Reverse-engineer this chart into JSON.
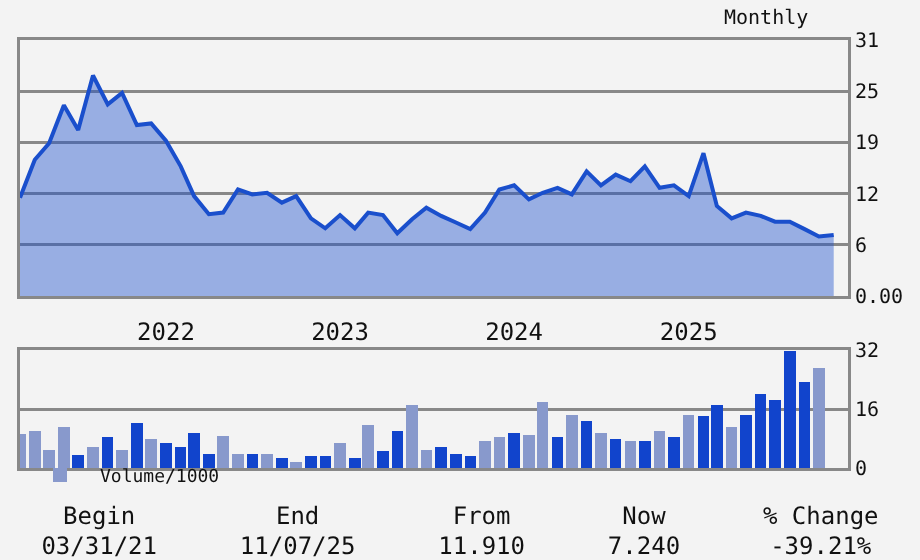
{
  "chart_data": [
    {
      "type": "area",
      "subtitle": "Monthly",
      "x": [
        "2021-03",
        "2021-04",
        "2021-05",
        "2021-06",
        "2021-07",
        "2021-08",
        "2021-09",
        "2021-10",
        "2021-11",
        "2021-12",
        "2022-01",
        "2022-02",
        "2022-03",
        "2022-04",
        "2022-05",
        "2022-06",
        "2022-07",
        "2022-08",
        "2022-09",
        "2022-10",
        "2022-11",
        "2022-12",
        "2023-01",
        "2023-02",
        "2023-03",
        "2023-04",
        "2023-05",
        "2023-06",
        "2023-07",
        "2023-08",
        "2023-09",
        "2023-10",
        "2023-11",
        "2023-12",
        "2024-01",
        "2024-02",
        "2024-03",
        "2024-04",
        "2024-05",
        "2024-06",
        "2024-07",
        "2024-08",
        "2024-09",
        "2024-10",
        "2024-11",
        "2024-12",
        "2025-01",
        "2025-02",
        "2025-03",
        "2025-04",
        "2025-05",
        "2025-06",
        "2025-07",
        "2025-08",
        "2025-09",
        "2025-10",
        "2025-11"
      ],
      "series": [
        {
          "color": "#1a4fcc",
          "values": [
            11.9,
            16.5,
            18.5,
            23.1,
            20.1,
            26.7,
            23.2,
            24.6,
            20.7,
            20.9,
            18.8,
            15.7,
            12.1,
            9.9,
            10.1,
            12.9,
            12.3,
            12.5,
            11.3,
            12.1,
            9.4,
            8.2,
            9.8,
            8.2,
            10.1,
            9.8,
            7.6,
            9.3,
            10.7,
            9.7,
            8.9,
            8.1,
            10.1,
            12.9,
            13.4,
            11.7,
            12.5,
            13.1,
            12.3,
            15.1,
            13.4,
            14.7,
            13.9,
            15.7,
            13.1,
            13.4,
            12.1,
            17.3,
            10.9,
            9.4,
            10.1,
            9.7,
            9.0,
            9.0,
            8.1,
            7.2,
            7.4
          ]
        }
      ],
      "xlim": [
        "2021-03-01",
        "2025-12-01"
      ],
      "xticks": [
        {
          "value": "2022-01-01",
          "label": "2022"
        },
        {
          "value": "2023-01-01",
          "label": "2023"
        },
        {
          "value": "2024-01-01",
          "label": "2024"
        },
        {
          "value": "2025-01-01",
          "label": "2025"
        }
      ],
      "ylim": [
        0,
        31
      ],
      "yticks": [
        {
          "value": 0,
          "label": "0.00"
        },
        {
          "value": 6.2,
          "label": "6"
        },
        {
          "value": 12.4,
          "label": "12"
        },
        {
          "value": 18.6,
          "label": "19"
        },
        {
          "value": 24.8,
          "label": "25"
        },
        31
      ],
      "grid": "y",
      "legend": false
    },
    {
      "type": "bar",
      "x": [
        "2021-03",
        "2021-04",
        "2021-05",
        "2021-06",
        "2021-07",
        "2021-08",
        "2021-09",
        "2021-10",
        "2021-11",
        "2021-12",
        "2022-01",
        "2022-02",
        "2022-03",
        "2022-04",
        "2022-05",
        "2022-06",
        "2022-07",
        "2022-08",
        "2022-09",
        "2022-10",
        "2022-11",
        "2022-12",
        "2023-01",
        "2023-02",
        "2023-03",
        "2023-04",
        "2023-05",
        "2023-06",
        "2023-07",
        "2023-08",
        "2023-09",
        "2023-10",
        "2023-11",
        "2023-12",
        "2024-01",
        "2024-02",
        "2024-03",
        "2024-04",
        "2024-05",
        "2024-06",
        "2024-07",
        "2024-08",
        "2024-09",
        "2024-10",
        "2024-11",
        "2024-12",
        "2025-01",
        "2025-02",
        "2025-03",
        "2025-04",
        "2025-05",
        "2025-06",
        "2025-07",
        "2025-08",
        "2025-09",
        "2025-10"
      ],
      "series": [
        {
          "name": "Volume/1000",
          "color": "#8899cc",
          "colors": [
            "#8899cc",
            "#8899cc",
            "#8899cc",
            "#8899cc",
            "#1144cc",
            "#8899cc",
            "#1144cc",
            "#8899cc",
            "#1144cc",
            "#8899cc",
            "#1144cc",
            "#1144cc",
            "#1144cc",
            "#1144cc",
            "#8899cc",
            "#8899cc",
            "#1144cc",
            "#8899cc",
            "#1144cc",
            "#8899cc",
            "#1144cc",
            "#1144cc",
            "#8899cc",
            "#1144cc",
            "#8899cc",
            "#1144cc",
            "#1144cc",
            "#8899cc",
            "#8899cc",
            "#1144cc",
            "#1144cc",
            "#1144cc",
            "#8899cc",
            "#8899cc",
            "#1144cc",
            "#8899cc",
            "#8899cc",
            "#1144cc",
            "#8899cc",
            "#1144cc",
            "#8899cc",
            "#1144cc",
            "#8899cc",
            "#1144cc",
            "#8899cc",
            "#1144cc",
            "#8899cc",
            "#1144cc",
            "#1144cc",
            "#8899cc",
            "#1144cc",
            "#1144cc",
            "#1144cc",
            "#1144cc",
            "#1144cc",
            "#8899cc"
          ],
          "values": [
            9.1,
            10.0,
            5.0,
            11.2,
            3.5,
            5.6,
            8.4,
            5.0,
            12.3,
            7.8,
            6.7,
            5.6,
            9.5,
            3.9,
            8.6,
            3.9,
            3.9,
            3.9,
            2.8,
            1.7,
            3.3,
            3.3,
            6.7,
            2.8,
            11.7,
            4.5,
            10.0,
            17.1,
            5.0,
            5.6,
            3.9,
            3.3,
            7.3,
            8.4,
            9.5,
            8.9,
            17.9,
            8.4,
            14.5,
            12.8,
            9.5,
            7.8,
            7.3,
            7.3,
            10.0,
            8.4,
            14.5,
            14.0,
            17.1,
            11.2,
            14.5,
            20.1,
            18.4,
            31.8,
            23.4,
            27.0
          ]
        }
      ],
      "xlim": [
        "2021-03-01",
        "2025-12-01"
      ],
      "ylim": [
        0,
        32
      ],
      "yticks": [
        0,
        16,
        32
      ],
      "grid": "y",
      "legend": "bottom left",
      "tick_labels": "y"
    },
    {
      "type": "other",
      "categories": [
        "Begin",
        "End",
        "From",
        "Now",
        "% Change"
      ],
      "value_labels": [
        "03/31/21",
        "11/07/25",
        "11.910",
        "7.240",
        "-39.21%"
      ]
    }
  ]
}
